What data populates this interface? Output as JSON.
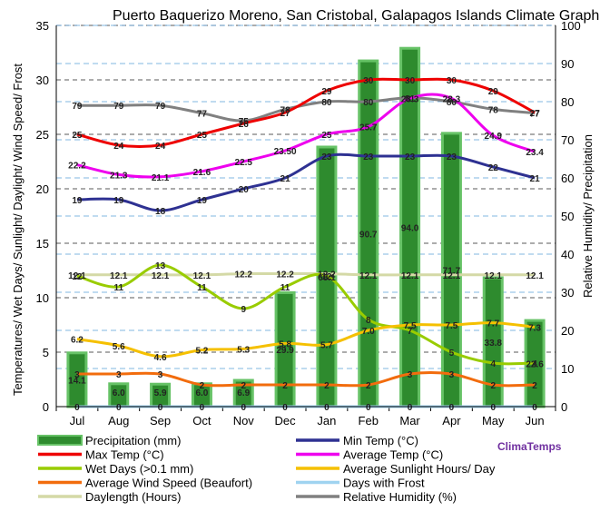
{
  "chart_data": {
    "type": "bar",
    "title": "Puerto Baquerizo Moreno, San Cristobal, Galapagos Islands Climate Graph",
    "categories": [
      "Jul",
      "Aug",
      "Sep",
      "Oct",
      "Nov",
      "Dec",
      "Jan",
      "Feb",
      "Mar",
      "Apr",
      "May",
      "Jun"
    ],
    "ylabel_left": "Temperatures/ Wet Days/ Sunlight/ Daylight/ Wind Speed/ Frost",
    "ylabel_right": "Relative Humidity/ Precipitation",
    "ylim_left": [
      0,
      35
    ],
    "ylim_right": [
      0,
      100
    ],
    "left_ticks": [
      0,
      5,
      10,
      15,
      20,
      25,
      30,
      35
    ],
    "right_ticks": [
      0,
      10,
      20,
      30,
      40,
      50,
      60,
      70,
      80,
      90,
      100
    ],
    "brand": "ClimaTemps",
    "bars": {
      "name": "Precipitation (mm)",
      "color": "#2e8b2e",
      "values": [
        14.1,
        6.0,
        5.9,
        6.0,
        6.9,
        29.9,
        68.1,
        90.7,
        94.0,
        71.7,
        33.8,
        22.6
      ],
      "labels": [
        "14.1",
        "6.0",
        "5.9",
        "6.0",
        "6.9",
        "29.9",
        "68.1",
        "90.7",
        "94.0",
        "71.7",
        "33.8",
        "22.6"
      ]
    },
    "series": [
      {
        "name": "Daylength (Hours)",
        "axis": "left",
        "color": "#d4d9a6",
        "values": [
          12.1,
          12.1,
          12.1,
          12.1,
          12.2,
          12.2,
          12.2,
          12.1,
          12.1,
          12.1,
          12.1,
          12.1
        ],
        "labels": [
          "12.1",
          "12.1",
          "12.1",
          "12.1",
          "12.2",
          "12.2",
          "12.2",
          "12.1",
          "12.1",
          "12.1",
          "12.1",
          "12.1"
        ]
      },
      {
        "name": "Relative Humidity (%)",
        "axis": "right",
        "color": "#808080",
        "values": [
          79,
          79,
          79,
          77,
          75,
          78,
          80,
          80,
          81,
          80,
          78,
          77
        ],
        "labels": [
          "79",
          "79",
          "79",
          "77",
          "75",
          "78",
          "80",
          "80",
          "81",
          "80",
          "78",
          "77"
        ]
      },
      {
        "name": "Max Temp (°C)",
        "axis": "left",
        "color": "#ee0000",
        "values": [
          25,
          24,
          24,
          25,
          26,
          27,
          29,
          30,
          30,
          30,
          29,
          27
        ],
        "labels": [
          "25",
          "24",
          "24",
          "25",
          "26",
          "27",
          "29",
          "30",
          "30",
          "30",
          "29",
          "27"
        ]
      },
      {
        "name": "Average Temp (°C)",
        "axis": "left",
        "color": "#ee00ee",
        "values": [
          22.2,
          21.3,
          21.1,
          21.6,
          22.5,
          23.5,
          25.0,
          25.7,
          28.3,
          28.3,
          24.9,
          23.4
        ],
        "labels": [
          "22.2",
          "21.3",
          "21.1",
          "21.6",
          "22.5",
          "23.50",
          "25",
          "25.7",
          "28.3",
          "28.3",
          "24.9",
          "23.4"
        ]
      },
      {
        "name": "Min Temp (°C)",
        "axis": "left",
        "color": "#2e3192",
        "values": [
          19,
          19,
          18,
          19,
          20,
          21,
          23,
          23,
          23,
          23,
          22,
          21
        ],
        "labels": [
          "19",
          "19",
          "18",
          "19",
          "20",
          "21",
          "23",
          "23",
          "23",
          "23",
          "22",
          "21"
        ]
      },
      {
        "name": "Wet Days (>0.1 mm)",
        "axis": "left",
        "color": "#99cc00",
        "values": [
          12,
          11,
          13,
          11,
          9,
          11,
          12,
          8,
          7,
          5,
          4,
          4
        ],
        "labels": [
          "12",
          "11",
          "13",
          "11",
          "9",
          "11",
          "12",
          "8",
          "7",
          "5",
          "4",
          "4"
        ]
      },
      {
        "name": "Average Sunlight Hours/ Day",
        "axis": "left",
        "color": "#f5c000",
        "values": [
          6.2,
          5.6,
          4.6,
          5.2,
          5.3,
          5.8,
          5.7,
          7.0,
          7.5,
          7.5,
          7.7,
          7.3
        ],
        "labels": [
          "6.2",
          "5.6",
          "4.6",
          "5.2",
          "5.3",
          "5.8",
          "5.7",
          "7.0",
          "7.5",
          "7.5",
          "7.7",
          "7.3"
        ]
      },
      {
        "name": "Average Wind Speed (Beaufort)",
        "axis": "left",
        "color": "#f26c0d",
        "values": [
          3,
          3,
          3,
          2,
          2,
          2,
          2,
          2,
          3,
          3,
          2,
          2
        ],
        "labels": [
          "3",
          "3",
          "3",
          "2",
          "2",
          "2",
          "2",
          "2",
          "3",
          "3",
          "2",
          "2"
        ]
      },
      {
        "name": "Days with Frost",
        "axis": "left",
        "color": "#9fd3f0",
        "values": [
          0,
          0,
          0,
          0,
          0,
          0,
          0,
          0,
          0,
          0,
          0,
          0
        ],
        "labels": [
          "0",
          "0",
          "0",
          "0",
          "0",
          "0",
          "0",
          "0",
          "0",
          "0",
          "0",
          "0"
        ]
      }
    ],
    "legend": [
      {
        "name": "Precipitation (mm)",
        "color": "#2e8b2e",
        "kind": "bar"
      },
      {
        "name": "Min Temp (°C)",
        "color": "#2e3192",
        "kind": "line"
      },
      {
        "name": "Max Temp (°C)",
        "color": "#ee0000",
        "kind": "line"
      },
      {
        "name": "Average Temp (°C)",
        "color": "#ee00ee",
        "kind": "line"
      },
      {
        "name": "Wet Days (>0.1 mm)",
        "color": "#99cc00",
        "kind": "line"
      },
      {
        "name": "Average Sunlight Hours/ Day",
        "color": "#f5c000",
        "kind": "line"
      },
      {
        "name": "Average Wind Speed (Beaufort)",
        "color": "#f26c0d",
        "kind": "line"
      },
      {
        "name": "Days with Frost",
        "color": "#9fd3f0",
        "kind": "line"
      },
      {
        "name": "Daylength (Hours)",
        "color": "#d4d9a6",
        "kind": "line"
      },
      {
        "name": "Relative Humidity (%)",
        "color": "#808080",
        "kind": "line"
      }
    ]
  }
}
